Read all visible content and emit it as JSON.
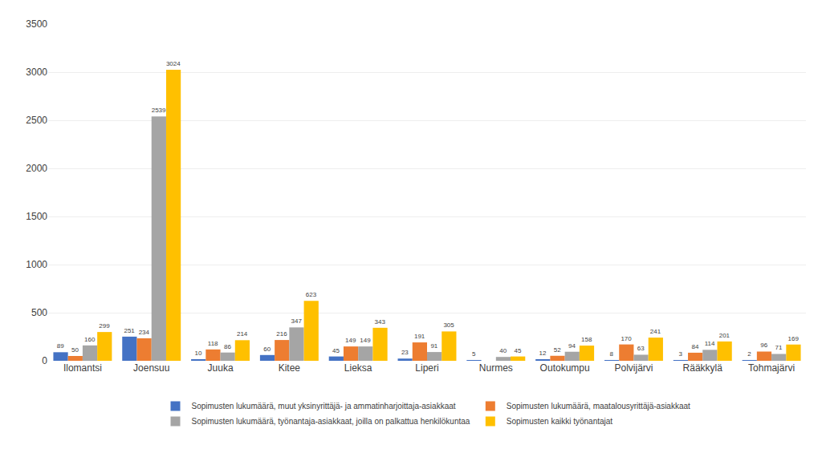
{
  "chart_data": {
    "type": "bar",
    "categories": [
      "Ilomantsi",
      "Joensuu",
      "Juuka",
      "Kitee",
      "Lieksa",
      "Liperi",
      "Nurmes",
      "Outokumpu",
      "Polvijärvi",
      "Rääkkylä",
      "Tohmajärvi"
    ],
    "series": [
      {
        "name": "Sopimusten lukumäärä, muut yksinyrittäjä- ja ammatinharjoittaja-asiakkaat",
        "color": "#4472C4",
        "values": [
          89,
          251,
          10,
          60,
          45,
          23,
          5,
          12,
          8,
          3,
          2
        ]
      },
      {
        "name": "Sopimusten lukumäärä, maatalousyrittäjä-asiakkaat",
        "color": "#ED7D31",
        "values": [
          50,
          234,
          118,
          216,
          149,
          191,
          0,
          52,
          170,
          84,
          96
        ]
      },
      {
        "name": "Sopimusten lukumäärä, työnantaja-asiakkaat, joilla on palkattua henkilökuntaa",
        "color": "#A5A5A5",
        "values": [
          160,
          2539,
          86,
          347,
          149,
          91,
          40,
          94,
          63,
          114,
          71
        ]
      },
      {
        "name": "Sopimusten kaikki työnantajat",
        "color": "#FFC000",
        "values": [
          299,
          3024,
          214,
          623,
          343,
          305,
          45,
          158,
          241,
          201,
          169
        ]
      }
    ],
    "ylim": [
      0,
      3500
    ],
    "yticks": [
      0,
      500,
      1000,
      1500,
      2000,
      2500,
      3000,
      3500
    ],
    "grid": true,
    "legend": "bottom",
    "data_labels": true
  }
}
